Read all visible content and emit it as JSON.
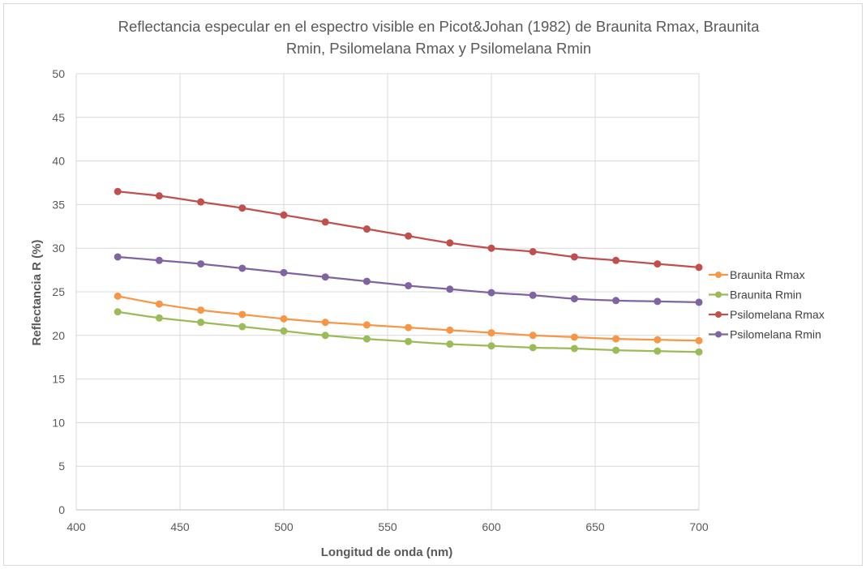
{
  "chart_data": {
    "type": "line",
    "title_lines": [
      "Reflectancia especular en el espectro visible en Picot&Johan (1982) de Braunita Rmax, Braunita",
      "Rmin, Psilomelana Rmax y Psilomelana Rmin"
    ],
    "xlabel": "Longitud de onda (nm)",
    "ylabel": "Reflectancia R (%)",
    "xlim": [
      400,
      700
    ],
    "ylim": [
      0,
      50
    ],
    "x_ticks": [
      400,
      450,
      500,
      550,
      600,
      650,
      700
    ],
    "y_ticks": [
      0,
      5,
      10,
      15,
      20,
      25,
      30,
      35,
      40,
      45,
      50
    ],
    "grid": true,
    "legend_position": "right",
    "x": [
      420,
      440,
      460,
      480,
      500,
      520,
      540,
      560,
      580,
      600,
      620,
      640,
      660,
      680,
      700
    ],
    "series": [
      {
        "name": "Braunita Rmax",
        "color": "#f79646",
        "values": [
          24.5,
          23.6,
          22.9,
          22.4,
          21.9,
          21.5,
          21.2,
          20.9,
          20.6,
          20.3,
          20.0,
          19.8,
          19.6,
          19.5,
          19.4
        ]
      },
      {
        "name": "Braunita Rmin",
        "color": "#9bbb59",
        "values": [
          22.7,
          22.0,
          21.5,
          21.0,
          20.5,
          20.0,
          19.6,
          19.3,
          19.0,
          18.8,
          18.6,
          18.5,
          18.3,
          18.2,
          18.1
        ]
      },
      {
        "name": "Psilomelana Rmax",
        "color": "#c0504d",
        "values": [
          36.5,
          36.0,
          35.3,
          34.6,
          33.8,
          33.0,
          32.2,
          31.4,
          30.6,
          30.0,
          29.6,
          29.0,
          28.6,
          28.2,
          27.8
        ]
      },
      {
        "name": "Psilomelana Rmin",
        "color": "#8064a2",
        "values": [
          29.0,
          28.6,
          28.2,
          27.7,
          27.2,
          26.7,
          26.2,
          25.7,
          25.3,
          24.9,
          24.6,
          24.2,
          24.0,
          23.9,
          23.8
        ]
      }
    ]
  }
}
